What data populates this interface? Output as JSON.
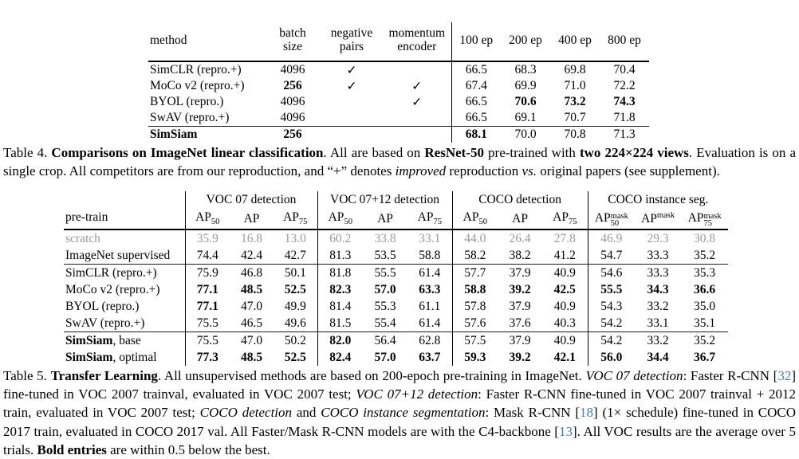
{
  "page": {
    "background": "#ffffff",
    "cite_color": "#3d7dbf",
    "gray_row_color": "#9a9a9a",
    "check_icon": "✓"
  },
  "table4": {
    "header": {
      "method": "method",
      "batch": [
        "batch",
        "size"
      ],
      "negative": [
        "negative",
        "pairs"
      ],
      "momentum": [
        "momentum",
        "encoder"
      ],
      "epochs": [
        "100 ep",
        "200 ep",
        "400 ep",
        "800 ep"
      ]
    },
    "rows": [
      {
        "label": [
          {
            "t": "SimCLR (repro.+)",
            "b": 0
          }
        ],
        "batch": "4096",
        "batch_b": 0,
        "neg": 1,
        "mom": 0,
        "vals": [
          "66.5",
          "68.3",
          "69.8",
          "70.4"
        ],
        "b": [
          0,
          0,
          0,
          0
        ],
        "rule": 0
      },
      {
        "label": [
          {
            "t": "MoCo v2 (repro.+)",
            "b": 0
          }
        ],
        "batch": "256",
        "batch_b": 1,
        "neg": 1,
        "mom": 1,
        "vals": [
          "67.4",
          "69.9",
          "71.0",
          "72.2"
        ],
        "b": [
          0,
          0,
          0,
          0
        ],
        "rule": 0
      },
      {
        "label": [
          {
            "t": "BYOL (repro.)",
            "b": 0
          }
        ],
        "batch": "4096",
        "batch_b": 0,
        "neg": 0,
        "mom": 1,
        "vals": [
          "66.5",
          "70.6",
          "73.2",
          "74.3"
        ],
        "b": [
          0,
          1,
          1,
          1
        ],
        "rule": 0
      },
      {
        "label": [
          {
            "t": "SwAV (repro.+)",
            "b": 0
          }
        ],
        "batch": "4096",
        "batch_b": 0,
        "neg": 0,
        "mom": 0,
        "vals": [
          "66.5",
          "69.1",
          "70.7",
          "71.8"
        ],
        "b": [
          0,
          0,
          0,
          0
        ],
        "rule": 0
      },
      {
        "label": [
          {
            "t": "SimSiam",
            "b": 1
          }
        ],
        "batch": "256",
        "batch_b": 1,
        "neg": 0,
        "mom": 0,
        "vals": [
          "68.1",
          "70.0",
          "70.8",
          "71.3"
        ],
        "b": [
          1,
          0,
          0,
          0
        ],
        "rule": 1
      }
    ]
  },
  "caption4": [
    {
      "t": "Table 4.  ",
      "s": "n"
    },
    {
      "t": "Comparisons on ImageNet linear classification",
      "s": "b"
    },
    {
      "t": ". All are based on ",
      "s": "n"
    },
    {
      "t": "ResNet-50",
      "s": "b"
    },
    {
      "t": " pre-trained with ",
      "s": "n"
    },
    {
      "t": "two 224×224 views",
      "s": "b"
    },
    {
      "t": ". Evaluation is on a single crop. All competitors are from our reproduction, and “+” denotes ",
      "s": "n"
    },
    {
      "t": "improved",
      "s": "i"
    },
    {
      "t": " reproduction ",
      "s": "n"
    },
    {
      "t": "vs.",
      "s": "i"
    },
    {
      "t": " original papers (see supplement).",
      "s": "n"
    }
  ],
  "table5": {
    "pretrain_label": "pre-train",
    "groups": [
      {
        "label": "VOC 07 detection",
        "cols": [
          {
            "base": "AP",
            "sub": "50"
          },
          {
            "base": "AP"
          },
          {
            "base": "AP",
            "sub": "75"
          }
        ]
      },
      {
        "label": "VOC 07+12 detection",
        "cols": [
          {
            "base": "AP",
            "sub": "50"
          },
          {
            "base": "AP"
          },
          {
            "base": "AP",
            "sub": "75"
          }
        ]
      },
      {
        "label": "COCO detection",
        "cols": [
          {
            "base": "AP",
            "sub": "50"
          },
          {
            "base": "AP"
          },
          {
            "base": "AP",
            "sub": "75"
          }
        ]
      },
      {
        "label": "COCO instance seg.",
        "cols": [
          {
            "base": "AP",
            "sub": "50",
            "sup": "mask"
          },
          {
            "base": "AP",
            "sup": "mask"
          },
          {
            "base": "AP",
            "sub": "75",
            "sup": "mask"
          }
        ]
      }
    ],
    "rows": [
      {
        "label": [
          {
            "t": "scratch",
            "b": 0
          }
        ],
        "gray": 1,
        "rule": 0,
        "vals": [
          "35.9",
          "16.8",
          "13.0",
          "60.2",
          "33.8",
          "33.1",
          "44.0",
          "26.4",
          "27.8",
          "46.9",
          "29.3",
          "30.8"
        ],
        "b": [
          0,
          0,
          0,
          0,
          0,
          0,
          0,
          0,
          0,
          0,
          0,
          0
        ]
      },
      {
        "label": [
          {
            "t": "ImageNet supervised",
            "b": 0
          }
        ],
        "gray": 0,
        "rule": 0,
        "vals": [
          "74.4",
          "42.4",
          "42.7",
          "81.3",
          "53.5",
          "58.8",
          "58.2",
          "38.2",
          "41.2",
          "54.7",
          "33.3",
          "35.2"
        ],
        "b": [
          0,
          0,
          0,
          0,
          0,
          0,
          0,
          0,
          0,
          0,
          0,
          0
        ]
      },
      {
        "label": [
          {
            "t": "SimCLR (repro.+)",
            "b": 0
          }
        ],
        "gray": 0,
        "rule": 1,
        "vals": [
          "75.9",
          "46.8",
          "50.1",
          "81.8",
          "55.5",
          "61.4",
          "57.7",
          "37.9",
          "40.9",
          "54.6",
          "33.3",
          "35.3"
        ],
        "b": [
          0,
          0,
          0,
          0,
          0,
          0,
          0,
          0,
          0,
          0,
          0,
          0
        ]
      },
      {
        "label": [
          {
            "t": "MoCo v2 (repro.+)",
            "b": 0
          }
        ],
        "gray": 0,
        "rule": 0,
        "vals": [
          "77.1",
          "48.5",
          "52.5",
          "82.3",
          "57.0",
          "63.3",
          "58.8",
          "39.2",
          "42.5",
          "55.5",
          "34.3",
          "36.6"
        ],
        "b": [
          1,
          1,
          1,
          1,
          1,
          1,
          1,
          1,
          1,
          1,
          1,
          1
        ]
      },
      {
        "label": [
          {
            "t": "BYOL (repro.)",
            "b": 0
          }
        ],
        "gray": 0,
        "rule": 0,
        "vals": [
          "77.1",
          "47.0",
          "49.9",
          "81.4",
          "55.3",
          "61.1",
          "57.8",
          "37.9",
          "40.9",
          "54.3",
          "33.2",
          "35.0"
        ],
        "b": [
          1,
          0,
          0,
          0,
          0,
          0,
          0,
          0,
          0,
          0,
          0,
          0
        ]
      },
      {
        "label": [
          {
            "t": "SwAV (repro.+)",
            "b": 0
          }
        ],
        "gray": 0,
        "rule": 0,
        "vals": [
          "75.5",
          "46.5",
          "49.6",
          "81.5",
          "55.4",
          "61.4",
          "57.6",
          "37.6",
          "40.3",
          "54.2",
          "33.1",
          "35.1"
        ],
        "b": [
          0,
          0,
          0,
          0,
          0,
          0,
          0,
          0,
          0,
          0,
          0,
          0
        ]
      },
      {
        "label": [
          {
            "t": "SimSiam",
            "b": 1
          },
          {
            "t": ", base",
            "b": 0
          }
        ],
        "gray": 0,
        "rule": 1,
        "vals": [
          "75.5",
          "47.0",
          "50.2",
          "82.0",
          "56.4",
          "62.8",
          "57.5",
          "37.9",
          "40.9",
          "54.2",
          "33.2",
          "35.2"
        ],
        "b": [
          0,
          0,
          0,
          1,
          0,
          0,
          0,
          0,
          0,
          0,
          0,
          0
        ]
      },
      {
        "label": [
          {
            "t": "SimSiam",
            "b": 1
          },
          {
            "t": ", optimal",
            "b": 0
          }
        ],
        "gray": 0,
        "rule": 0,
        "vals": [
          "77.3",
          "48.5",
          "52.5",
          "82.4",
          "57.0",
          "63.7",
          "59.3",
          "39.2",
          "42.1",
          "56.0",
          "34.4",
          "36.7"
        ],
        "b": [
          1,
          1,
          1,
          1,
          1,
          1,
          1,
          1,
          1,
          1,
          1,
          1
        ]
      }
    ]
  },
  "caption5": [
    {
      "t": "Table 5. ",
      "s": "n"
    },
    {
      "t": "Transfer Learning",
      "s": "b"
    },
    {
      "t": ".  All unsupervised methods are based on 200-epoch pre-training in ImageNet.  ",
      "s": "n"
    },
    {
      "t": "VOC 07 detection",
      "s": "i"
    },
    {
      "t": ": Faster R-CNN [",
      "s": "n"
    },
    {
      "t": "32",
      "s": "c"
    },
    {
      "t": "] fine-tuned in VOC 2007 trainval, evaluated in VOC 2007 test; ",
      "s": "n"
    },
    {
      "t": "VOC 07+12 detection",
      "s": "i"
    },
    {
      "t": ": Faster R-CNN fine-tuned in VOC 2007 trainval + 2012 train, evaluated in VOC 2007 test; ",
      "s": "n"
    },
    {
      "t": "COCO detection",
      "s": "i"
    },
    {
      "t": " and ",
      "s": "n"
    },
    {
      "t": "COCO instance segmentation",
      "s": "i"
    },
    {
      "t": ": Mask R-CNN [",
      "s": "n"
    },
    {
      "t": "18",
      "s": "c"
    },
    {
      "t": "] (1× schedule) fine-tuned in COCO 2017 train, evaluated in COCO 2017 val. All Faster/Mask R-CNN models are with the C4-backbone [",
      "s": "n"
    },
    {
      "t": "13",
      "s": "c"
    },
    {
      "t": "]. All VOC results are the average over 5 trials. ",
      "s": "n"
    },
    {
      "t": "Bold entries",
      "s": "b"
    },
    {
      "t": " are within 0.5 below the best.",
      "s": "n"
    }
  ]
}
